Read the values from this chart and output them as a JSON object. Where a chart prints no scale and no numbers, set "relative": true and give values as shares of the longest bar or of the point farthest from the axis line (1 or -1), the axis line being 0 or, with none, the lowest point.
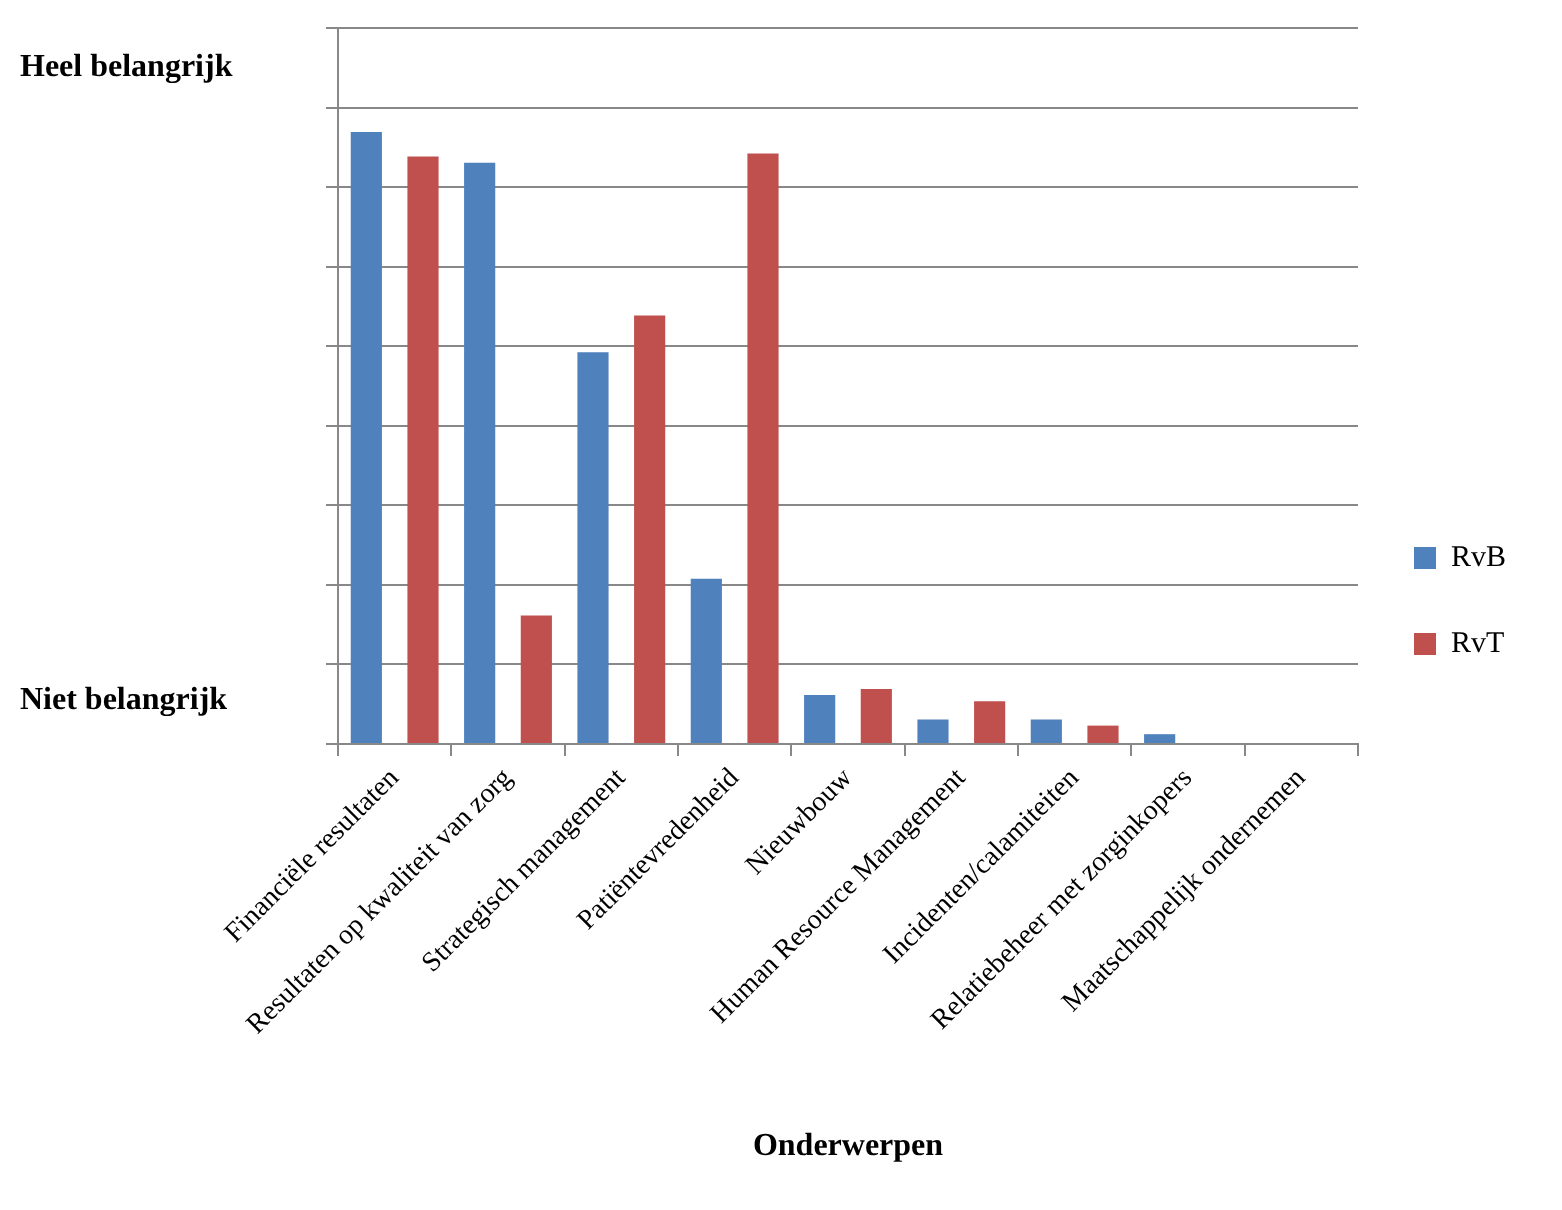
{
  "chart_data": {
    "type": "bar",
    "relative": true,
    "xlabel": "Onderwerpen",
    "categories": [
      "Financiële resultaten",
      "Resultaten op kwaliteit van zorg",
      "Strategisch management",
      "Patiëntevredenheid",
      "Nieuwbouw",
      "Human Resource Management",
      "Incidenten/calamiteiten",
      "Relatiebeheer met zorginkopers",
      "Maatschappelijk ondernemen"
    ],
    "series": [
      {
        "name": "RvB",
        "color": "#4f81bd",
        "values": [
          1.0,
          0.95,
          0.64,
          0.27,
          0.08,
          0.04,
          0.04,
          0.016,
          0
        ]
      },
      {
        "name": "RvT",
        "color": "#c0504d",
        "values": [
          0.96,
          0.21,
          0.7,
          0.965,
          0.09,
          0.07,
          0.03,
          0,
          0
        ]
      }
    ],
    "annotations": [
      "Heel belangrijk",
      "Niet belangrijk"
    ],
    "grid": "y",
    "legend": "right"
  }
}
